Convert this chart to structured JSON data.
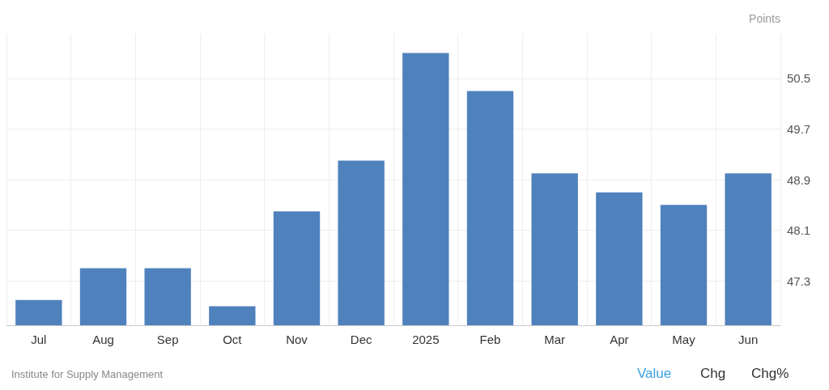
{
  "chart_data": {
    "type": "bar",
    "ylabel": "Points",
    "categories": [
      "Jul",
      "Aug",
      "Sep",
      "Oct",
      "Nov",
      "Dec",
      "2025",
      "Feb",
      "Mar",
      "Apr",
      "May",
      "Jun"
    ],
    "values": [
      47.0,
      47.5,
      47.5,
      46.9,
      48.4,
      49.2,
      50.9,
      50.3,
      49.0,
      48.7,
      48.5,
      49.0
    ],
    "color": "#4f81bd",
    "ylim": [
      46.6,
      51.2
    ],
    "yticks": [
      47.3,
      48.1,
      48.9,
      49.7,
      50.5
    ],
    "grid": true,
    "annotations": [
      "Institute for Supply Management",
      "Value",
      "Chg",
      "Chg%"
    ]
  }
}
